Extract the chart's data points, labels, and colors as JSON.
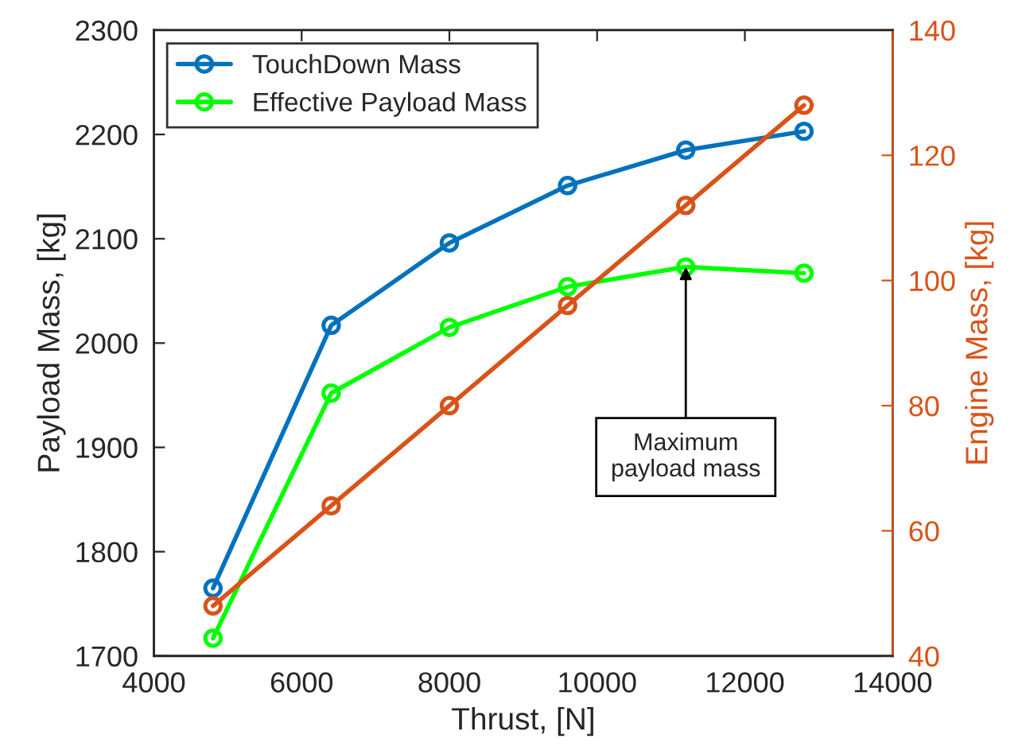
{
  "chart_data": {
    "type": "line",
    "xlabel": "Thrust, [N]",
    "ylabel": "Payload Mass, [kg]",
    "y2label": "Engine Mass, [kg]",
    "x": [
      4800,
      6400,
      8000,
      9600,
      11200,
      12800
    ],
    "series": [
      {
        "name": "TouchDown Mass",
        "color": "#0072bd",
        "values": [
          1765,
          2017,
          2096,
          2151,
          2185,
          2203
        ]
      },
      {
        "name": "Effective Payload Mass",
        "color": "#00ff00",
        "values": [
          1717,
          1952,
          2015,
          2054,
          2073,
          2067
        ]
      },
      {
        "color": "#d95319",
        "axis": "y2",
        "values": [
          48,
          64,
          80,
          96,
          112,
          128
        ]
      }
    ],
    "xlim": [
      4000,
      14000
    ],
    "xticks": [
      4000,
      6000,
      8000,
      10000,
      12000,
      14000
    ],
    "ylim": [
      1700,
      2300
    ],
    "yticks": [
      1700,
      1800,
      1900,
      2000,
      2100,
      2200,
      2300
    ],
    "y2lim": [
      40,
      140
    ],
    "y2ticks": [
      40,
      60,
      80,
      100,
      120,
      140
    ],
    "annotations": [
      {
        "text": "Maximum\npayload mass",
        "x": 11200,
        "y": 2073
      }
    ],
    "marker": "circle",
    "grid": false,
    "legend": "top left"
  }
}
